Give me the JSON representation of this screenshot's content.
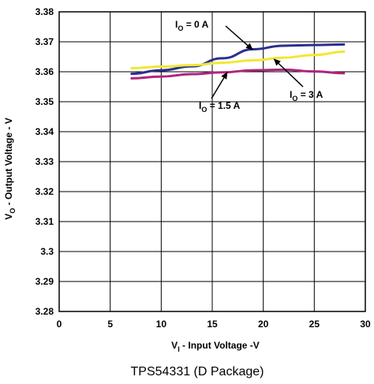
{
  "chart_data": {
    "type": "line",
    "xlabel": {
      "main": "V",
      "sub": "I",
      "rest": " - Input Voltage -V"
    },
    "ylabel": {
      "main": "V",
      "sub": "O",
      "rest": " - Output Voltage - V"
    },
    "xlim": [
      0,
      30
    ],
    "ylim": [
      3.28,
      3.38
    ],
    "x_ticks": [
      "0",
      "5",
      "10",
      "15",
      "20",
      "25",
      "30"
    ],
    "y_ticks": [
      "3.28",
      "3.29",
      "3.3",
      "3.31",
      "3.32",
      "3.33",
      "3.34",
      "3.35",
      "3.36",
      "3.37",
      "3.38"
    ],
    "grid": true,
    "series": [
      {
        "name": {
          "main": "I",
          "sub": "O",
          "rest": " = 0 A"
        },
        "color": "#2b2f8f",
        "x": [
          7,
          10,
          13,
          16,
          19,
          22,
          25,
          28
        ],
        "y": [
          3.3593,
          3.3605,
          3.3618,
          3.3645,
          3.3675,
          3.3687,
          3.3689,
          3.3691
        ]
      },
      {
        "name": {
          "main": "I",
          "sub": "O",
          "rest": " = 1.5 A"
        },
        "color": "#b0247e",
        "x": [
          7,
          10,
          13,
          16,
          19,
          22,
          25,
          28
        ],
        "y": [
          3.3578,
          3.3584,
          3.3592,
          3.3598,
          3.3605,
          3.3607,
          3.3601,
          3.3595
        ]
      },
      {
        "name": {
          "main": "I",
          "sub": "O",
          "rest": " = 3 A"
        },
        "color": "#f2e733",
        "x": [
          7,
          10,
          13,
          16,
          19,
          22,
          25,
          28
        ],
        "y": [
          3.3612,
          3.3617,
          3.3622,
          3.363,
          3.3638,
          3.3647,
          3.3656,
          3.3667
        ]
      }
    ],
    "caption": "TPS54331 (D Package)"
  }
}
